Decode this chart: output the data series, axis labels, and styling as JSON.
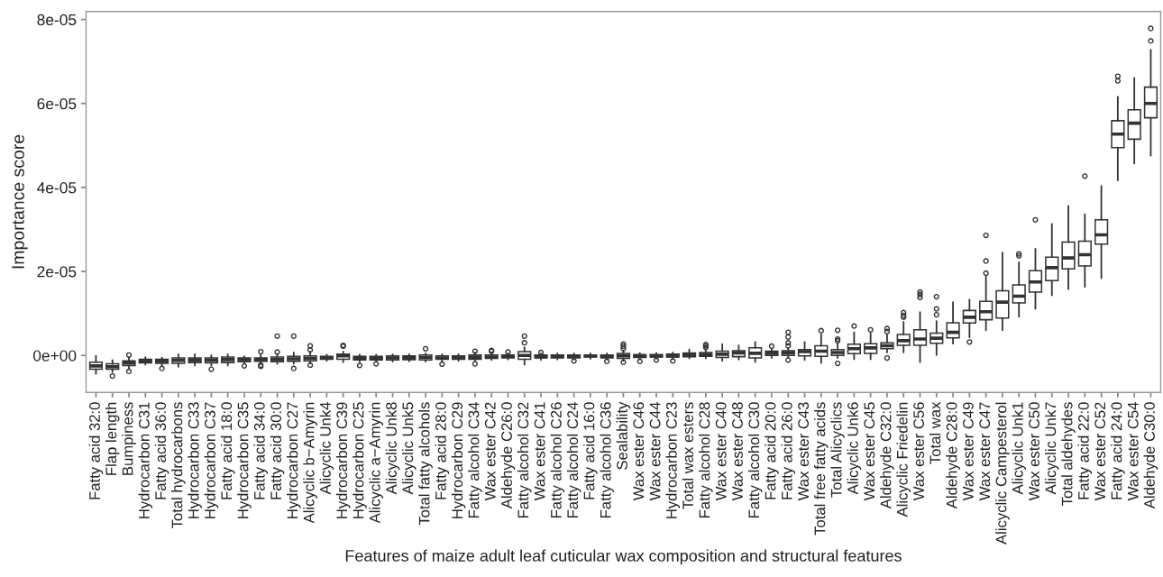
{
  "chart_data": {
    "type": "box",
    "xlabel": "Features of maize adult leaf cuticular wax composition and structural features",
    "ylabel": "Importance score",
    "color": "#333333",
    "grid": false,
    "ylim": [
      -8.8e-06,
      8.19e-05
    ],
    "yticks": [
      {
        "value": 0,
        "label": "0e+00"
      },
      {
        "value": 2e-05,
        "label": "2e-05"
      },
      {
        "value": 4e-05,
        "label": "4e-05"
      },
      {
        "value": 6e-05,
        "label": "6e-05"
      },
      {
        "value": 8e-05,
        "label": "8e-05"
      }
    ],
    "categories": [
      "Fatty acid 32:0",
      "Flap length",
      "Bumpiness",
      "Hydrocarbon C31",
      "Fatty acid 36:0",
      "Total hydrocarbons",
      "Hydrocarbon C33",
      "Hydrocarbon C37",
      "Fatty acid 18:0",
      "Hydrocarbon C35",
      "Fatty acid 34:0",
      "Fatty acid 30:0",
      "Hydrocarbon C27",
      "Alicyclic b−Amyrin",
      "Alicyclic Unk4",
      "Hydrocarbon C39",
      "Hydrocarbon C25",
      "Alicyclic a−Amyrin",
      "Alicyclic Unk8",
      "Alicyclic Unk5",
      "Total fatty alcohols",
      "Fatty acid 28:0",
      "Hydrocarbon C29",
      "Fatty alcohol C34",
      "Wax ester C42",
      "Aldehyde C26:0",
      "Fatty alcohol C32",
      "Wax ester C41",
      "Fatty alcohol C26",
      "Fatty alcohol C24",
      "Fatty acid 16:0",
      "Fatty alcohol C36",
      "Sealability",
      "Wax ester C46",
      "Wax ester C44",
      "Hydrocarbon C23",
      "Total wax esters",
      "Fatty alcohol C28",
      "Wax ester C40",
      "Wax ester C48",
      "Fatty alcohol C30",
      "Fatty acid 20:0",
      "Fatty acid 26:0",
      "Wax ester C43",
      "Total free fatty acids",
      "Total Alicyclics",
      "Alicyclic Unk6",
      "Wax ester C45",
      "Aldehyde C32:0",
      "Alicyclic Friedelin",
      "Wax ester C56",
      "Total wax",
      "Aldehyde C28:0",
      "Wax ester C49",
      "Wax ester C47",
      "Alicyclic Campesterol",
      "Alicyclic Unk1",
      "Wax ester C50",
      "Alicyclic Unk7",
      "Total aldehydes",
      "Fatty acid 22:0",
      "Wax ester C52",
      "Fatty acid 24:0",
      "Wax ester C54",
      "Aldehyde C30:0"
    ],
    "boxes": [
      {
        "low": -4.4e-06,
        "q1": -3.3e-06,
        "median": -2.5e-06,
        "q3": -1.6e-06,
        "high": -1e-07
      },
      {
        "low": -4e-06,
        "q1": -3.3e-06,
        "median": -2.7e-06,
        "q3": -2e-06,
        "high": -1.1e-06,
        "outliers": [
          -4.9e-06
        ]
      },
      {
        "low": -3.1e-06,
        "q1": -2.4e-06,
        "median": -1.8e-06,
        "q3": -1.3e-06,
        "high": -4e-07,
        "outliers": [
          1e-07,
          -3.8e-06
        ]
      },
      {
        "low": -2.2e-06,
        "q1": -1.8e-06,
        "median": -1.3e-06,
        "q3": -9e-07,
        "high": -4e-07
      },
      {
        "low": -2.4e-06,
        "q1": -1.9e-06,
        "median": -1.4e-06,
        "q3": -9e-07,
        "high": -5e-07,
        "outliers": [
          -3.1e-06
        ]
      },
      {
        "low": -2.7e-06,
        "q1": -1.9e-06,
        "median": -1.2e-06,
        "q3": -6e-07,
        "high": 3e-07
      },
      {
        "low": -2.4e-06,
        "q1": -1.7e-06,
        "median": -1.1e-06,
        "q3": -6e-07,
        "high": 3e-07
      },
      {
        "low": -2.4e-06,
        "q1": -1.8e-06,
        "median": -1.2e-06,
        "q3": -6e-07,
        "high": 0.0,
        "outliers": [
          -3.3e-06
        ]
      },
      {
        "low": -2.4e-06,
        "q1": -1.7e-06,
        "median": -1e-06,
        "q3": -4e-07,
        "high": 3e-07
      },
      {
        "low": -1.9e-06,
        "q1": -1.5e-06,
        "median": -1e-06,
        "q3": -6e-07,
        "high": -2e-07,
        "outliers": [
          -2.5e-06
        ]
      },
      {
        "low": -1.9e-06,
        "q1": -1.4e-06,
        "median": -1e-06,
        "q3": -6e-07,
        "high": 1e-07,
        "outliers": [
          9e-07,
          -2.3e-06,
          -2.6e-06
        ]
      },
      {
        "low": -2e-06,
        "q1": -1.5e-06,
        "median": -1e-06,
        "q3": -4e-07,
        "high": 4e-07,
        "outliers": [
          8e-07,
          4.6e-06
        ]
      },
      {
        "low": -2e-06,
        "q1": -1.4e-06,
        "median": -8e-07,
        "q3": -2e-07,
        "high": 7e-07,
        "outliers": [
          4.6e-06,
          -3.1e-06
        ]
      },
      {
        "low": -1.9e-06,
        "q1": -1.3e-06,
        "median": -7e-07,
        "q3": -1e-07,
        "high": 9e-07,
        "outliers": [
          1.3e-06,
          2.3e-06,
          -2.3e-06
        ]
      },
      {
        "low": -1.3e-06,
        "q1": -9e-07,
        "median": -6e-07,
        "q3": -2e-07,
        "high": 2e-07
      },
      {
        "low": -1.6e-06,
        "q1": -9e-07,
        "median": -1e-07,
        "q3": 3e-07,
        "high": 9e-07,
        "outliers": [
          2.2e-06,
          2.4e-06
        ]
      },
      {
        "low": -1.5e-06,
        "q1": -1.1e-06,
        "median": -7e-07,
        "q3": -2e-07,
        "high": 2e-07,
        "outliers": [
          -2.4e-06
        ]
      },
      {
        "low": -1.5e-06,
        "q1": -1.1e-06,
        "median": -7e-07,
        "q3": -2e-07,
        "high": 2e-07,
        "outliers": [
          -2e-06
        ]
      },
      {
        "low": -1.5e-06,
        "q1": -1.1e-06,
        "median": -6e-07,
        "q3": -1e-07,
        "high": 3e-07
      },
      {
        "low": -1.4e-06,
        "q1": -1e-06,
        "median": -5e-07,
        "q3": -1e-07,
        "high": 3e-07
      },
      {
        "low": -1.5e-06,
        "q1": -1.1e-06,
        "median": -5e-07,
        "q3": 1e-07,
        "high": 5e-07,
        "outliers": [
          1.6e-06
        ]
      },
      {
        "low": -1.3e-06,
        "q1": -9e-07,
        "median": -6e-07,
        "q3": -1e-07,
        "high": 3e-07,
        "outliers": [
          -2.1e-06
        ]
      },
      {
        "low": -1.3e-06,
        "q1": -9e-07,
        "median": -5e-07,
        "q3": -1e-07,
        "high": 3e-07
      },
      {
        "low": -1.3e-06,
        "q1": -9e-07,
        "median": -4e-07,
        "q3": 1e-07,
        "high": 7e-07,
        "outliers": [
          1e-06,
          -2e-06
        ]
      },
      {
        "low": -1.1e-06,
        "q1": -7e-07,
        "median": -4e-07,
        "q3": 1e-07,
        "high": 7e-07,
        "outliers": [
          1e-06,
          1.2e-06
        ]
      },
      {
        "low": -1e-06,
        "q1": -6e-07,
        "median": -2e-07,
        "q3": 1e-07,
        "high": 5e-07,
        "outliers": [
          8e-07
        ]
      },
      {
        "low": -2.2e-06,
        "q1": -9e-07,
        "median": 0.0,
        "q3": 9e-07,
        "high": 1.9e-06,
        "outliers": [
          3e-06,
          4.6e-06
        ]
      },
      {
        "low": -1.1e-06,
        "q1": -6e-07,
        "median": -3e-07,
        "q3": 1e-07,
        "high": 5e-07,
        "outliers": [
          7e-07
        ]
      },
      {
        "low": -1e-06,
        "q1": -6e-07,
        "median": -2e-07,
        "q3": 1e-07,
        "high": 5e-07
      },
      {
        "low": -1e-06,
        "q1": -6e-07,
        "median": -2e-07,
        "q3": 1e-07,
        "high": 5e-07,
        "outliers": [
          -1.3e-06
        ]
      },
      {
        "low": -8e-07,
        "q1": -4e-07,
        "median": -1e-07,
        "q3": 1e-07,
        "high": 5e-07
      },
      {
        "low": -1e-06,
        "q1": -6e-07,
        "median": -2e-07,
        "q3": 1e-07,
        "high": 5e-07,
        "outliers": [
          -1.4e-06
        ]
      },
      {
        "low": -1.3e-06,
        "q1": -7e-07,
        "median": -1e-07,
        "q3": 5e-07,
        "high": 1.2e-06,
        "outliers": [
          1.6e-06,
          2.2e-06,
          2.7e-06,
          -1.6e-06
        ]
      },
      {
        "low": -1e-06,
        "q1": -5e-07,
        "median": -1e-07,
        "q3": 2e-07,
        "high": 6e-07,
        "outliers": [
          -1.4e-06
        ]
      },
      {
        "low": -8e-07,
        "q1": -4e-07,
        "median": -1e-07,
        "q3": 2e-07,
        "high": 6e-07,
        "outliers": [
          -1.1e-06
        ]
      },
      {
        "low": -9e-07,
        "q1": -4e-07,
        "median": -1e-07,
        "q3": 3e-07,
        "high": 7e-07,
        "outliers": [
          -1.3e-06
        ]
      },
      {
        "low": -7e-07,
        "q1": -3e-07,
        "median": 1e-07,
        "q3": 6e-07,
        "high": 1.4e-06
      },
      {
        "low": -7e-07,
        "q1": -2e-07,
        "median": 2e-07,
        "q3": 7e-07,
        "high": 1.4e-06,
        "outliers": [
          1.9e-06,
          2.3e-06,
          2.6e-06
        ]
      },
      {
        "low": -1.3e-06,
        "q1": -5e-07,
        "median": 3e-07,
        "q3": 1e-06,
        "high": 2.7e-06
      },
      {
        "low": -1e-06,
        "q1": -3e-07,
        "median": 6e-07,
        "q3": 1.1e-06,
        "high": 2.4e-06
      },
      {
        "low": -1.6e-06,
        "q1": -6e-07,
        "median": 5e-07,
        "q3": 1.8e-06,
        "high": 3.2e-06
      },
      {
        "low": -6e-07,
        "q1": 0.0,
        "median": 5e-07,
        "q3": 1e-06,
        "high": 1.6e-06,
        "outliers": [
          2.2e-06
        ]
      },
      {
        "low": -6e-07,
        "q1": 0.0,
        "median": 6e-07,
        "q3": 1.1e-06,
        "high": 1.7e-06,
        "outliers": [
          2.3e-06,
          3e-06,
          4.4e-06,
          5.5e-06,
          -1.1e-06
        ]
      },
      {
        "low": -1.1e-06,
        "q1": -1e-07,
        "median": 9e-07,
        "q3": 1.4e-06,
        "high": 3.2e-06
      },
      {
        "low": -1.8e-06,
        "q1": -2e-07,
        "median": 1e-06,
        "q3": 2.3e-06,
        "high": 5e-06,
        "outliers": [
          5.9e-06
        ]
      },
      {
        "low": -6e-07,
        "q1": 0.0,
        "median": 7e-07,
        "q3": 1.4e-06,
        "high": 2.7e-06,
        "outliers": [
          3.5e-06,
          3.9e-06,
          6e-06,
          -1.9e-06
        ]
      },
      {
        "low": -9e-07,
        "q1": 4e-07,
        "median": 1.6e-06,
        "q3": 2.7e-06,
        "high": 5.5e-06,
        "outliers": [
          7e-06
        ]
      },
      {
        "low": -9e-07,
        "q1": 5e-07,
        "median": 1.8e-06,
        "q3": 2.8e-06,
        "high": 5.2e-06,
        "outliers": [
          6.1e-06
        ]
      },
      {
        "low": 7e-07,
        "q1": 1.6e-06,
        "median": 2.3e-06,
        "q3": 3e-06,
        "high": 5e-06,
        "outliers": [
          5.7e-06,
          6.4e-06,
          -6e-07
        ]
      },
      {
        "low": 7e-07,
        "q1": 2.4e-06,
        "median": 3.5e-06,
        "q3": 5e-06,
        "high": 8e-06,
        "outliers": [
          9.1e-06,
          9.5e-06,
          1.02e-05
        ]
      },
      {
        "low": -1.6e-06,
        "q1": 2.4e-06,
        "median": 3.9e-06,
        "q3": 6.1e-06,
        "high": 1.03e-05,
        "outliers": [
          1.38e-05,
          1.45e-05,
          1.51e-05
        ]
      },
      {
        "low": 1e-07,
        "q1": 2.9e-06,
        "median": 4.1e-06,
        "q3": 5.3e-06,
        "high": 8.2e-06,
        "outliers": [
          9.7e-06,
          1.11e-05,
          1.4e-05
        ]
      },
      {
        "low": 2.8e-06,
        "q1": 4.2e-06,
        "median": 5.5e-06,
        "q3": 7.8e-06,
        "high": 1.27e-05
      },
      {
        "low": 4.3e-06,
        "q1": 7.7e-06,
        "median": 9.1e-06,
        "q3": 1.07e-05,
        "high": 1.33e-05,
        "outliers": [
          3.2e-06
        ]
      },
      {
        "low": 6e-06,
        "q1": 8.5e-06,
        "median": 1.04e-05,
        "q3": 1.29e-05,
        "high": 1.88e-05,
        "outliers": [
          1.96e-05,
          2.25e-05,
          2.86e-05
        ]
      },
      {
        "low": 6e-06,
        "q1": 8.9e-06,
        "median": 1.27e-05,
        "q3": 1.54e-05,
        "high": 2.45e-05
      },
      {
        "low": 9.2e-06,
        "q1": 1.25e-05,
        "median": 1.41e-05,
        "q3": 1.68e-05,
        "high": 2.22e-05,
        "outliers": [
          2.37e-05,
          2.42e-05
        ]
      },
      {
        "low": 1.11e-05,
        "q1": 1.51e-05,
        "median": 1.75e-05,
        "q3": 2.02e-05,
        "high": 2.54e-05,
        "outliers": [
          3.23e-05
        ]
      },
      {
        "low": 1.43e-05,
        "q1": 1.78e-05,
        "median": 2.09e-05,
        "q3": 2.34e-05,
        "high": 3.13e-05
      },
      {
        "low": 1.58e-05,
        "q1": 2.06e-05,
        "median": 2.32e-05,
        "q3": 2.7e-05,
        "high": 3.56e-05
      },
      {
        "low": 1.63e-05,
        "q1": 2.13e-05,
        "median": 2.4e-05,
        "q3": 2.72e-05,
        "high": 3.36e-05,
        "outliers": [
          4.27e-05
        ]
      },
      {
        "low": 1.84e-05,
        "q1": 2.65e-05,
        "median": 2.87e-05,
        "q3": 3.23e-05,
        "high": 4.04e-05
      },
      {
        "low": 4.17e-05,
        "q1": 4.95e-05,
        "median": 5.27e-05,
        "q3": 5.59e-05,
        "high": 6.16e-05,
        "outliers": [
          6.54e-05,
          6.65e-05
        ]
      },
      {
        "low": 4.57e-05,
        "q1": 5.15e-05,
        "median": 5.53e-05,
        "q3": 5.85e-05,
        "high": 6.61e-05
      },
      {
        "low": 4.76e-05,
        "q1": 5.66e-05,
        "median": 6e-05,
        "q3": 6.39e-05,
        "high": 7.28e-05,
        "outliers": [
          7.49e-05,
          7.79e-05
        ]
      }
    ]
  }
}
